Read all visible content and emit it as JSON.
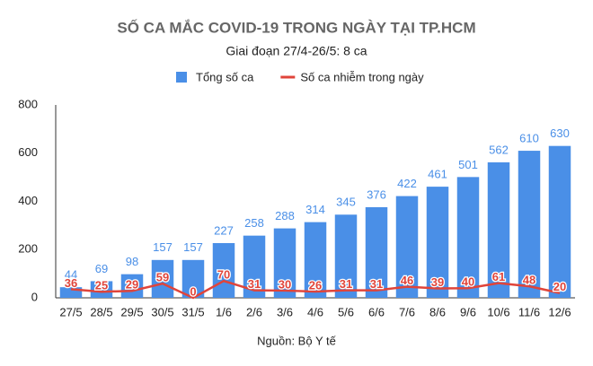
{
  "chart_data": {
    "type": "bar",
    "title": "SỐ CA MẮC COVID-19 TRONG NGÀY TẠI TP.HCM",
    "subtitle": "Giai đoạn 27/4-26/5: 8 ca",
    "source": "Nguồn: Bộ Y tế",
    "categories": [
      "27/5",
      "28/5",
      "29/5",
      "30/5",
      "31/5",
      "1/6",
      "2/6",
      "3/6",
      "4/6",
      "5/6",
      "6/6",
      "7/6",
      "8/6",
      "9/6",
      "10/6",
      "11/6",
      "12/6"
    ],
    "series": [
      {
        "name": "Tổng số ca",
        "type": "bar",
        "color": "#4a8fe7",
        "values": [
          44,
          69,
          98,
          157,
          157,
          227,
          258,
          288,
          314,
          345,
          376,
          422,
          461,
          501,
          562,
          610,
          630
        ]
      },
      {
        "name": "Số ca nhiễm trong ngày",
        "type": "line",
        "color": "#e0443a",
        "values": [
          36,
          25,
          29,
          59,
          0,
          70,
          31,
          30,
          26,
          31,
          31,
          46,
          39,
          40,
          61,
          48,
          20
        ]
      }
    ],
    "ylim": [
      0,
      800
    ],
    "yticks": [
      0,
      200,
      400,
      600,
      800
    ],
    "grid": false,
    "legend": "top"
  }
}
